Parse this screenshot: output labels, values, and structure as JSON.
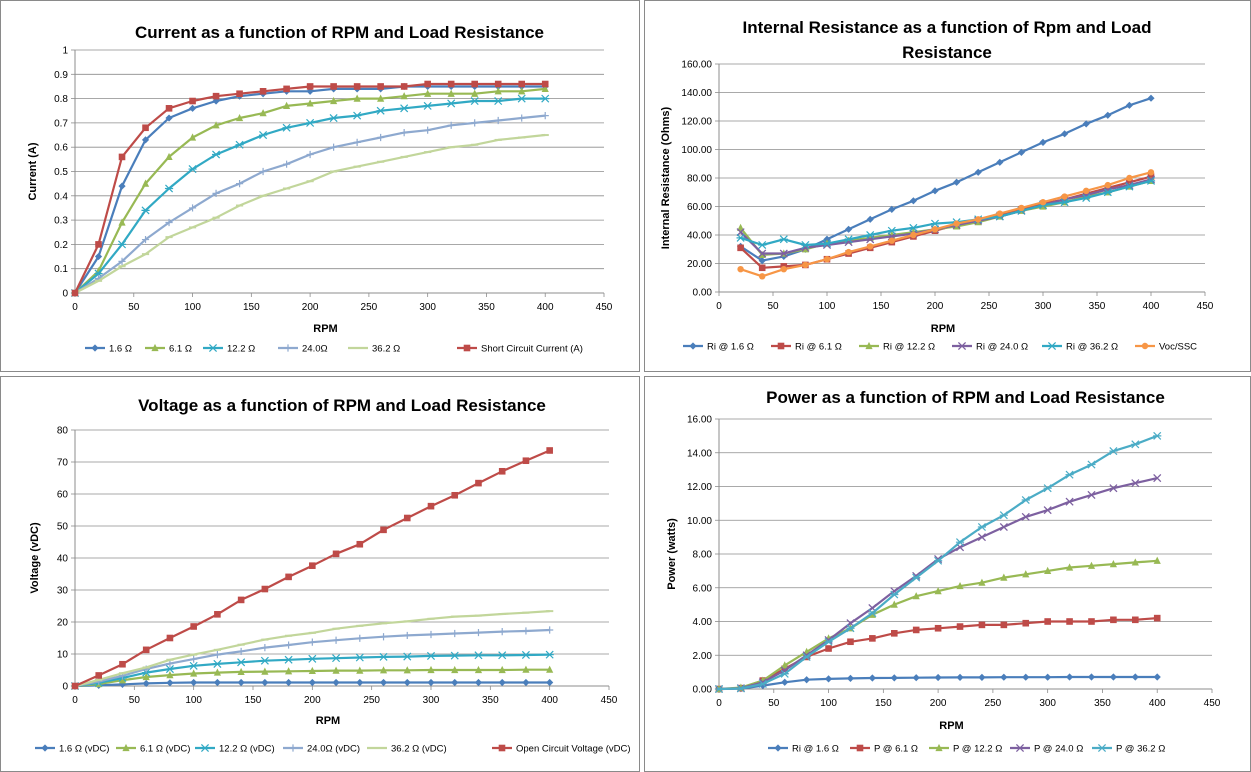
{
  "chart_data": [
    {
      "type": "line",
      "title": "Current as a function of RPM and Load Resistance",
      "xlabel": "RPM",
      "ylabel": "Current (A)",
      "xlim": [
        0,
        450
      ],
      "ylim": [
        0,
        1
      ],
      "xticks": [
        "0",
        "50",
        "100",
        "150",
        "200",
        "250",
        "300",
        "350",
        "400",
        "450"
      ],
      "yticks": [
        "0",
        "0.1",
        "0.2",
        "0.3",
        "0.4",
        "0.5",
        "0.6",
        "0.7",
        "0.8",
        "0.9",
        "1"
      ],
      "x": [
        0,
        20,
        40,
        60,
        80,
        100,
        120,
        140,
        160,
        180,
        200,
        220,
        240,
        260,
        280,
        300,
        320,
        340,
        360,
        380,
        400
      ],
      "series": [
        {
          "name": "1.6 Ω",
          "color": "#4a7ebb",
          "marker": "diamond",
          "values": [
            0,
            0.15,
            0.44,
            0.63,
            0.72,
            0.76,
            0.79,
            0.81,
            0.82,
            0.83,
            0.83,
            0.84,
            0.84,
            0.84,
            0.85,
            0.85,
            0.85,
            0.85,
            0.85,
            0.85,
            0.85
          ]
        },
        {
          "name": "6.1 Ω",
          "color": "#98b954",
          "marker": "triangle",
          "values": [
            0,
            0.09,
            0.29,
            0.45,
            0.56,
            0.64,
            0.69,
            0.72,
            0.74,
            0.77,
            0.78,
            0.79,
            0.8,
            0.8,
            0.81,
            0.82,
            0.82,
            0.82,
            0.83,
            0.83,
            0.84
          ]
        },
        {
          "name": "12.2 Ω",
          "color": "#31a9c4",
          "marker": "star",
          "values": [
            0,
            0.08,
            0.2,
            0.34,
            0.43,
            0.51,
            0.57,
            0.61,
            0.65,
            0.68,
            0.7,
            0.72,
            0.73,
            0.75,
            0.76,
            0.77,
            0.78,
            0.79,
            0.79,
            0.8,
            0.8
          ]
        },
        {
          "name": "24.0Ω",
          "color": "#8ea9cf",
          "marker": "plus",
          "values": [
            0,
            0.06,
            0.13,
            0.22,
            0.29,
            0.35,
            0.41,
            0.45,
            0.5,
            0.53,
            0.57,
            0.6,
            0.62,
            0.64,
            0.66,
            0.67,
            0.69,
            0.7,
            0.71,
            0.72,
            0.73
          ]
        },
        {
          "name": "36.2 Ω",
          "color": "#c2d69b",
          "marker": "dash",
          "values": [
            0,
            0.05,
            0.11,
            0.16,
            0.23,
            0.27,
            0.31,
            0.36,
            0.4,
            0.43,
            0.46,
            0.5,
            0.52,
            0.54,
            0.56,
            0.58,
            0.6,
            0.61,
            0.63,
            0.64,
            0.65
          ]
        },
        {
          "name": "Short Circuit Current (A)",
          "color": "#be4b48",
          "marker": "square",
          "values": [
            0,
            0.2,
            0.56,
            0.68,
            0.76,
            0.79,
            0.81,
            0.82,
            0.83,
            0.84,
            0.85,
            0.85,
            0.85,
            0.85,
            0.85,
            0.86,
            0.86,
            0.86,
            0.86,
            0.86,
            0.86
          ]
        }
      ]
    },
    {
      "type": "line",
      "title": "Internal Resistance as a function of Rpm and Load Resistance",
      "title_lines": [
        "Internal Resistance as a function of Rpm and Load",
        "Resistance"
      ],
      "xlabel": "RPM",
      "ylabel": "Internal Resistance (Ohms)",
      "xlim": [
        0,
        450
      ],
      "ylim": [
        0,
        160
      ],
      "xticks": [
        "0",
        "50",
        "100",
        "150",
        "200",
        "250",
        "300",
        "350",
        "400",
        "450"
      ],
      "yticks": [
        "0.00",
        "20.00",
        "40.00",
        "60.00",
        "80.00",
        "100.00",
        "120.00",
        "140.00",
        "160.00"
      ],
      "x": [
        20,
        40,
        60,
        80,
        100,
        120,
        140,
        160,
        180,
        200,
        220,
        240,
        260,
        280,
        300,
        320,
        340,
        360,
        380,
        400
      ],
      "series": [
        {
          "name": "Ri @ 1.6 Ω",
          "color": "#4a7ebb",
          "marker": "diamond",
          "values": [
            32,
            22,
            25,
            30,
            37,
            44,
            51,
            58,
            64,
            71,
            77,
            84,
            91,
            98,
            105,
            111,
            118,
            124,
            131,
            136
          ]
        },
        {
          "name": "Ri @ 6.1 Ω",
          "color": "#be4b48",
          "marker": "square",
          "values": [
            31,
            17,
            18,
            19,
            23,
            27,
            31,
            35,
            39,
            43,
            47,
            50,
            54,
            58,
            62,
            65,
            69,
            73,
            77,
            81
          ]
        },
        {
          "name": "Ri @ 12.2 Ω",
          "color": "#98b954",
          "marker": "triangle",
          "values": [
            45,
            26,
            27,
            30,
            34,
            36,
            38,
            40,
            42,
            44,
            46,
            49,
            53,
            57,
            60,
            63,
            67,
            70,
            74,
            78
          ]
        },
        {
          "name": "Ri @ 24.0 Ω",
          "color": "#7d60a0",
          "marker": "x",
          "values": [
            42,
            27,
            27,
            31,
            33,
            35,
            37,
            39,
            41,
            44,
            47,
            50,
            53,
            57,
            61,
            65,
            68,
            72,
            75,
            79
          ]
        },
        {
          "name": "Ri @ 36.2 Ω",
          "color": "#31a9c4",
          "marker": "star",
          "values": [
            38,
            33,
            37,
            33,
            34,
            37,
            40,
            43,
            45,
            48,
            49,
            51,
            53,
            57,
            61,
            63,
            66,
            70,
            74,
            78
          ]
        },
        {
          "name": "Voc/SSC",
          "color": "#f79646",
          "marker": "circle",
          "values": [
            16,
            11,
            16,
            19,
            23,
            28,
            32,
            36,
            40,
            44,
            48,
            51,
            55,
            59,
            63,
            67,
            71,
            75,
            80,
            84
          ]
        }
      ]
    },
    {
      "type": "line",
      "title": "Voltage as a function of RPM and Load Resistance",
      "xlabel": "RPM",
      "ylabel": "Voltage (vDC)",
      "xlim": [
        0,
        450
      ],
      "ylim": [
        0,
        80
      ],
      "xticks": [
        "0",
        "50",
        "100",
        "150",
        "200",
        "250",
        "300",
        "350",
        "400",
        "450"
      ],
      "yticks": [
        "0",
        "10",
        "20",
        "30",
        "40",
        "50",
        "60",
        "70",
        "80"
      ],
      "x": [
        0,
        20,
        40,
        60,
        80,
        100,
        120,
        140,
        160,
        180,
        200,
        220,
        240,
        260,
        280,
        300,
        320,
        340,
        360,
        380,
        400
      ],
      "series": [
        {
          "name": "1.6 Ω  (vDC)",
          "color": "#4a7ebb",
          "marker": "diamond",
          "values": [
            0,
            0.2,
            0.5,
            0.8,
            1.0,
            1.1,
            1.1,
            1.1,
            1.1,
            1.1,
            1.1,
            1.1,
            1.1,
            1.1,
            1.1,
            1.1,
            1.1,
            1.1,
            1.1,
            1.1,
            1.1
          ]
        },
        {
          "name": "6.1 Ω  (vDC)",
          "color": "#98b954",
          "marker": "triangle",
          "values": [
            0,
            0.6,
            1.8,
            2.8,
            3.4,
            3.9,
            4.2,
            4.4,
            4.5,
            4.6,
            4.7,
            4.8,
            4.8,
            4.9,
            4.9,
            5.0,
            5.0,
            5.0,
            5.0,
            5.1,
            5.1
          ]
        },
        {
          "name": "12.2 Ω  (vDC)",
          "color": "#31a9c4",
          "marker": "star",
          "values": [
            0,
            1.0,
            2.5,
            4.2,
            5.3,
            6.3,
            6.9,
            7.4,
            7.9,
            8.2,
            8.5,
            8.7,
            8.9,
            9.1,
            9.2,
            9.4,
            9.5,
            9.6,
            9.6,
            9.7,
            9.8
          ]
        },
        {
          "name": "24.0Ω  (vDC)",
          "color": "#8ea9cf",
          "marker": "plus",
          "values": [
            0,
            1.4,
            3.2,
            5.3,
            7.0,
            8.4,
            9.8,
            10.8,
            12.0,
            12.8,
            13.7,
            14.3,
            14.9,
            15.4,
            15.8,
            16.1,
            16.4,
            16.7,
            17.0,
            17.2,
            17.5
          ]
        },
        {
          "name": "36.2 Ω  (vDC)",
          "color": "#c2d69b",
          "marker": "dash",
          "values": [
            0,
            1.9,
            4.0,
            5.8,
            8.2,
            9.8,
            11.3,
            12.9,
            14.5,
            15.7,
            16.6,
            17.9,
            18.8,
            19.6,
            20.2,
            21.0,
            21.7,
            22.0,
            22.5,
            22.9,
            23.4
          ]
        },
        {
          "name": "Open Circuit Voltage  (vDC)",
          "color": "#be4b48",
          "marker": "square",
          "values": [
            0,
            3.3,
            6.8,
            11.3,
            15.0,
            18.6,
            22.4,
            26.9,
            30.3,
            34.1,
            37.6,
            41.3,
            44.3,
            48.8,
            52.5,
            56.2,
            59.6,
            63.4,
            67.1,
            70.4,
            73.6
          ]
        }
      ]
    },
    {
      "type": "line",
      "title": "Power as a function of RPM and Load Resistance",
      "xlabel": "RPM",
      "ylabel": "Power (watts)",
      "xlim": [
        0,
        450
      ],
      "ylim": [
        0,
        16
      ],
      "xticks": [
        "0",
        "50",
        "100",
        "150",
        "200",
        "250",
        "300",
        "350",
        "400",
        "450"
      ],
      "yticks": [
        "0.00",
        "2.00",
        "4.00",
        "6.00",
        "8.00",
        "10.00",
        "12.00",
        "14.00",
        "16.00"
      ],
      "x": [
        0,
        20,
        40,
        60,
        80,
        100,
        120,
        140,
        160,
        180,
        200,
        220,
        240,
        260,
        280,
        300,
        320,
        340,
        360,
        380,
        400
      ],
      "series": [
        {
          "name": "Ri @ 1.6 Ω",
          "color": "#4a7ebb",
          "marker": "diamond",
          "values": [
            0,
            0.02,
            0.2,
            0.4,
            0.55,
            0.6,
            0.63,
            0.65,
            0.66,
            0.67,
            0.68,
            0.69,
            0.69,
            0.7,
            0.7,
            0.7,
            0.71,
            0.71,
            0.71,
            0.71,
            0.71
          ]
        },
        {
          "name": "P @ 6.1 Ω",
          "color": "#be4b48",
          "marker": "square",
          "values": [
            0,
            0.05,
            0.5,
            1.2,
            1.9,
            2.4,
            2.8,
            3.0,
            3.3,
            3.5,
            3.6,
            3.7,
            3.8,
            3.8,
            3.9,
            4.0,
            4.0,
            4.0,
            4.1,
            4.1,
            4.2
          ]
        },
        {
          "name": "P @ 12.2 Ω",
          "color": "#98b954",
          "marker": "triangle",
          "values": [
            0,
            0.08,
            0.5,
            1.4,
            2.2,
            3.0,
            3.6,
            4.4,
            5.0,
            5.5,
            5.8,
            6.1,
            6.3,
            6.6,
            6.8,
            7.0,
            7.2,
            7.3,
            7.4,
            7.5,
            7.6
          ]
        },
        {
          "name": "P @ 24.0 Ω",
          "color": "#7d60a0",
          "marker": "x",
          "values": [
            0,
            0.05,
            0.4,
            1.1,
            2.0,
            2.9,
            3.9,
            4.8,
            5.8,
            6.7,
            7.7,
            8.4,
            9.0,
            9.6,
            10.2,
            10.6,
            11.1,
            11.5,
            11.9,
            12.2,
            12.5
          ]
        },
        {
          "name": "P @ 36.2 Ω",
          "color": "#4bacc6",
          "marker": "star",
          "values": [
            0,
            0.03,
            0.3,
            0.9,
            1.9,
            2.8,
            3.6,
            4.5,
            5.6,
            6.6,
            7.6,
            8.7,
            9.6,
            10.3,
            11.2,
            11.9,
            12.7,
            13.3,
            14.1,
            14.5,
            15.0
          ]
        }
      ]
    }
  ]
}
